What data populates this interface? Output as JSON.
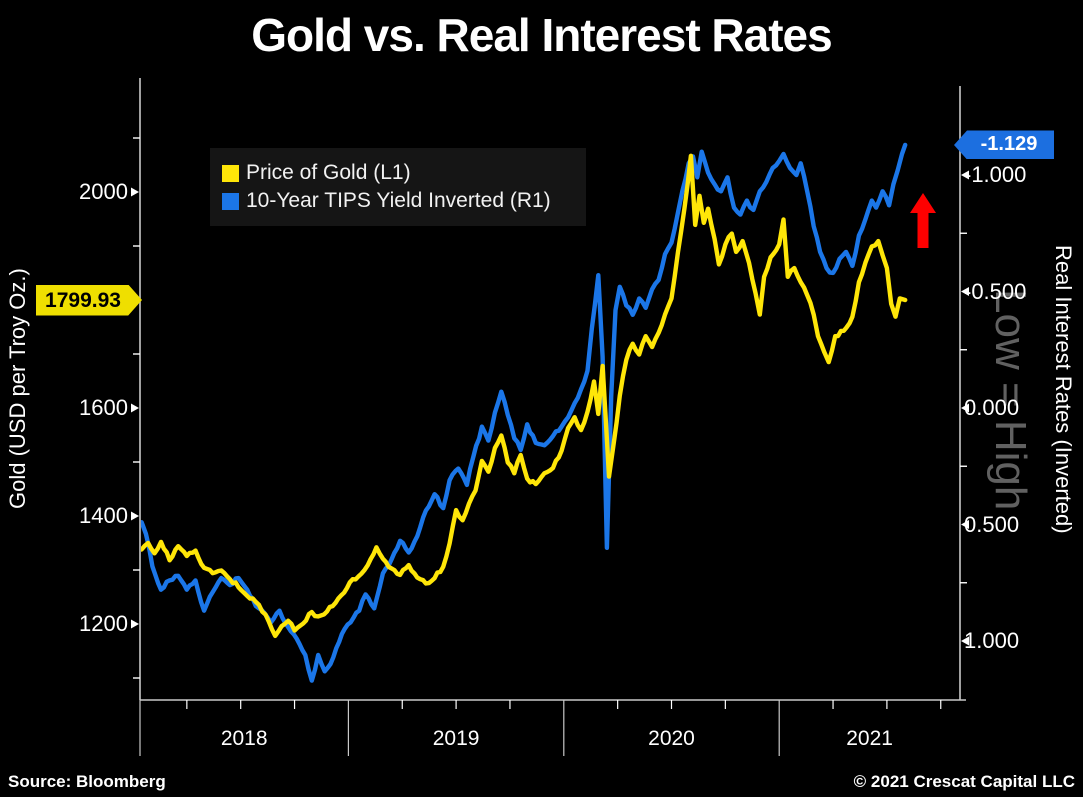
{
  "title": "Gold vs. Real Interest Rates",
  "watermark": "Low = High",
  "footer": {
    "source": "Source: Bloomberg",
    "copyright": "© 2021 Crescat Capital LLC"
  },
  "colors": {
    "gold_line": "#FFE608",
    "gold_badge": "#EFDF00",
    "blue_line": "#1B76E8",
    "blue_badge": "#1C6FE0",
    "arrow_red": "#FE0000",
    "axis": "#C9C9C9",
    "tick": "#FFFFFF",
    "text": "#FFFFFF",
    "watermark": "#616161",
    "legend_bg": "#151515"
  },
  "legend": {
    "items": [
      {
        "label": "Price of Gold (L1)",
        "color_key": "gold_line"
      },
      {
        "label": "10-Year TIPS Yield Inverted (R1)",
        "color_key": "blue_line"
      }
    ]
  },
  "left_axis": {
    "title": "Gold (USD per Troy Oz.)",
    "badge_value": "1799.93",
    "major_ticks": [
      {
        "value": 2000,
        "label": "2000"
      },
      {
        "value": 1800,
        "label": ""
      },
      {
        "value": 1600,
        "label": "1600"
      },
      {
        "value": 1400,
        "label": "1400"
      },
      {
        "value": 1200,
        "label": "1200"
      }
    ],
    "minor_ticks": [
      2100,
      1900,
      1700,
      1500,
      1300,
      1100
    ]
  },
  "right_axis": {
    "title": "Real Interest Rates (Inverted)",
    "badge_value": "-1.129",
    "major_ticks": [
      {
        "value": -1.0,
        "label": "-1.000"
      },
      {
        "value": -0.5,
        "label": "-0.500"
      },
      {
        "value": 0.0,
        "label": "0.000"
      },
      {
        "value": 0.5,
        "label": "0.500"
      },
      {
        "value": 1.0,
        "label": "1.000"
      }
    ],
    "minor_ticks": [
      -0.75,
      -0.25,
      0.25,
      0.75
    ]
  },
  "x_axis": {
    "year_labels": [
      "2018",
      "2019",
      "2020",
      "2021"
    ],
    "year_boundaries": [
      2018.0,
      2019.0,
      2020.0,
      2021.0
    ],
    "quarter_ticks": [
      2018.25,
      2018.5,
      2018.75,
      2019.25,
      2019.5,
      2019.75,
      2020.25,
      2020.5,
      2020.75,
      2021.25,
      2021.5,
      2021.75
    ]
  },
  "annotation_arrow": {
    "meaning": "real rates pushing to new lows (inverted axis rising)",
    "color_key": "arrow_red"
  },
  "chart_data": {
    "type": "line",
    "title": "Gold vs. Real Interest Rates",
    "x_unit": "decimal_year",
    "x_range": [
      2018.03,
      2021.59
    ],
    "grid": false,
    "legend_position": "top-left",
    "left_axis": {
      "label": "Gold (USD per Troy Oz.)",
      "ticks": [
        1200,
        1400,
        1600,
        1800,
        2000
      ]
    },
    "right_axis": {
      "label": "Real Interest Rates (Inverted)",
      "ticks": [
        -1.0,
        -0.5,
        0.0,
        0.5,
        1.0
      ],
      "inverted": true
    },
    "series": [
      {
        "name": "Price of Gold (L1)",
        "axis": "left",
        "units": "USD per Troy Oz.",
        "last_value": 1799.93,
        "points": [
          [
            2018.04,
            1338
          ],
          [
            2018.07,
            1350
          ],
          [
            2018.1,
            1331
          ],
          [
            2018.13,
            1352
          ],
          [
            2018.17,
            1318
          ],
          [
            2018.21,
            1344
          ],
          [
            2018.25,
            1326
          ],
          [
            2018.29,
            1336
          ],
          [
            2018.33,
            1304
          ],
          [
            2018.37,
            1294
          ],
          [
            2018.41,
            1299
          ],
          [
            2018.45,
            1283
          ],
          [
            2018.49,
            1268
          ],
          [
            2018.53,
            1252
          ],
          [
            2018.57,
            1241
          ],
          [
            2018.6,
            1223
          ],
          [
            2018.63,
            1205
          ],
          [
            2018.66,
            1178
          ],
          [
            2018.69,
            1196
          ],
          [
            2018.72,
            1206
          ],
          [
            2018.75,
            1188
          ],
          [
            2018.79,
            1201
          ],
          [
            2018.83,
            1222
          ],
          [
            2018.86,
            1214
          ],
          [
            2018.9,
            1223
          ],
          [
            2018.94,
            1239
          ],
          [
            2018.98,
            1258
          ],
          [
            2019.02,
            1283
          ],
          [
            2019.06,
            1293
          ],
          [
            2019.09,
            1309
          ],
          [
            2019.13,
            1342
          ],
          [
            2019.16,
            1321
          ],
          [
            2019.2,
            1303
          ],
          [
            2019.24,
            1291
          ],
          [
            2019.28,
            1309
          ],
          [
            2019.32,
            1286
          ],
          [
            2019.36,
            1275
          ],
          [
            2019.4,
            1285
          ],
          [
            2019.44,
            1306
          ],
          [
            2019.47,
            1349
          ],
          [
            2019.5,
            1411
          ],
          [
            2019.53,
            1392
          ],
          [
            2019.56,
            1423
          ],
          [
            2019.59,
            1447
          ],
          [
            2019.62,
            1502
          ],
          [
            2019.65,
            1482
          ],
          [
            2019.68,
            1526
          ],
          [
            2019.71,
            1549
          ],
          [
            2019.74,
            1499
          ],
          [
            2019.77,
            1479
          ],
          [
            2019.8,
            1513
          ],
          [
            2019.83,
            1469
          ],
          [
            2019.87,
            1459
          ],
          [
            2019.91,
            1479
          ],
          [
            2019.95,
            1489
          ],
          [
            2019.99,
            1521
          ],
          [
            2020.02,
            1563
          ],
          [
            2020.05,
            1583
          ],
          [
            2020.08,
            1559
          ],
          [
            2020.11,
            1593
          ],
          [
            2020.14,
            1649
          ],
          [
            2020.16,
            1589
          ],
          [
            2020.18,
            1678
          ],
          [
            2020.21,
            1473
          ],
          [
            2020.23,
            1529
          ],
          [
            2020.26,
            1623
          ],
          [
            2020.29,
            1689
          ],
          [
            2020.32,
            1719
          ],
          [
            2020.35,
            1699
          ],
          [
            2020.38,
            1733
          ],
          [
            2020.41,
            1713
          ],
          [
            2020.44,
            1739
          ],
          [
            2020.47,
            1773
          ],
          [
            2020.5,
            1803
          ],
          [
            2020.53,
            1889
          ],
          [
            2020.56,
            1969
          ],
          [
            2020.59,
            2067
          ],
          [
            2020.61,
            1939
          ],
          [
            2020.63,
            1993
          ],
          [
            2020.65,
            1943
          ],
          [
            2020.67,
            1969
          ],
          [
            2020.7,
            1913
          ],
          [
            2020.72,
            1866
          ],
          [
            2020.75,
            1903
          ],
          [
            2020.78,
            1923
          ],
          [
            2020.8,
            1889
          ],
          [
            2020.83,
            1909
          ],
          [
            2020.86,
            1869
          ],
          [
            2020.89,
            1813
          ],
          [
            2020.91,
            1773
          ],
          [
            2020.93,
            1843
          ],
          [
            2020.96,
            1879
          ],
          [
            2021.0,
            1903
          ],
          [
            2021.02,
            1949
          ],
          [
            2021.04,
            1843
          ],
          [
            2021.07,
            1859
          ],
          [
            2021.1,
            1833
          ],
          [
            2021.13,
            1809
          ],
          [
            2021.16,
            1773
          ],
          [
            2021.18,
            1733
          ],
          [
            2021.21,
            1703
          ],
          [
            2021.23,
            1685
          ],
          [
            2021.26,
            1733
          ],
          [
            2021.3,
            1743
          ],
          [
            2021.34,
            1769
          ],
          [
            2021.37,
            1833
          ],
          [
            2021.4,
            1869
          ],
          [
            2021.43,
            1899
          ],
          [
            2021.46,
            1909
          ],
          [
            2021.48,
            1883
          ],
          [
            2021.5,
            1859
          ],
          [
            2021.52,
            1793
          ],
          [
            2021.54,
            1769
          ],
          [
            2021.56,
            1803
          ],
          [
            2021.585,
            1799.93
          ]
        ]
      },
      {
        "name": "10-Year TIPS Yield Inverted (R1)",
        "axis": "right",
        "units": "percent",
        "axis_inverted": true,
        "last_value": -1.129,
        "points": [
          [
            2018.04,
            0.49
          ],
          [
            2018.06,
            0.54
          ],
          [
            2018.09,
            0.68
          ],
          [
            2018.13,
            0.78
          ],
          [
            2018.17,
            0.74
          ],
          [
            2018.21,
            0.72
          ],
          [
            2018.25,
            0.78
          ],
          [
            2018.29,
            0.74
          ],
          [
            2018.33,
            0.87
          ],
          [
            2018.37,
            0.79
          ],
          [
            2018.41,
            0.73
          ],
          [
            2018.45,
            0.76
          ],
          [
            2018.49,
            0.73
          ],
          [
            2018.53,
            0.78
          ],
          [
            2018.57,
            0.85
          ],
          [
            2018.61,
            0.88
          ],
          [
            2018.64,
            0.92
          ],
          [
            2018.68,
            0.87
          ],
          [
            2018.72,
            0.94
          ],
          [
            2018.76,
            0.99
          ],
          [
            2018.8,
            1.06
          ],
          [
            2018.83,
            1.17
          ],
          [
            2018.86,
            1.06
          ],
          [
            2018.89,
            1.13
          ],
          [
            2018.93,
            1.07
          ],
          [
            2018.97,
            0.97
          ],
          [
            2019.01,
            0.92
          ],
          [
            2019.05,
            0.87
          ],
          [
            2019.08,
            0.8
          ],
          [
            2019.12,
            0.86
          ],
          [
            2019.16,
            0.71
          ],
          [
            2019.2,
            0.65
          ],
          [
            2019.24,
            0.57
          ],
          [
            2019.28,
            0.62
          ],
          [
            2019.32,
            0.55
          ],
          [
            2019.36,
            0.44
          ],
          [
            2019.4,
            0.37
          ],
          [
            2019.44,
            0.43
          ],
          [
            2019.47,
            0.31
          ],
          [
            2019.51,
            0.26
          ],
          [
            2019.55,
            0.33
          ],
          [
            2019.58,
            0.21
          ],
          [
            2019.62,
            0.08
          ],
          [
            2019.65,
            0.14
          ],
          [
            2019.68,
            0.02
          ],
          [
            2019.71,
            -0.07
          ],
          [
            2019.74,
            0.03
          ],
          [
            2019.77,
            0.13
          ],
          [
            2019.8,
            0.18
          ],
          [
            2019.83,
            0.07
          ],
          [
            2019.87,
            0.15
          ],
          [
            2019.91,
            0.16
          ],
          [
            2019.95,
            0.12
          ],
          [
            2019.99,
            0.08
          ],
          [
            2020.02,
            0.04
          ],
          [
            2020.05,
            -0.02
          ],
          [
            2020.08,
            -0.08
          ],
          [
            2020.11,
            -0.16
          ],
          [
            2020.13,
            -0.34
          ],
          [
            2020.16,
            -0.57
          ],
          [
            2020.18,
            -0.22
          ],
          [
            2020.2,
            0.6
          ],
          [
            2020.22,
            -0.05
          ],
          [
            2020.24,
            -0.42
          ],
          [
            2020.26,
            -0.52
          ],
          [
            2020.29,
            -0.44
          ],
          [
            2020.32,
            -0.4
          ],
          [
            2020.35,
            -0.47
          ],
          [
            2020.38,
            -0.43
          ],
          [
            2020.41,
            -0.51
          ],
          [
            2020.44,
            -0.55
          ],
          [
            2020.47,
            -0.66
          ],
          [
            2020.5,
            -0.71
          ],
          [
            2020.53,
            -0.84
          ],
          [
            2020.55,
            -0.93
          ],
          [
            2020.58,
            -1.05
          ],
          [
            2020.6,
            -1.08
          ],
          [
            2020.62,
            -0.99
          ],
          [
            2020.64,
            -1.1
          ],
          [
            2020.67,
            -1.01
          ],
          [
            2020.7,
            -0.96
          ],
          [
            2020.73,
            -0.93
          ],
          [
            2020.76,
            -0.99
          ],
          [
            2020.79,
            -0.86
          ],
          [
            2020.82,
            -0.83
          ],
          [
            2020.85,
            -0.89
          ],
          [
            2020.88,
            -0.85
          ],
          [
            2020.91,
            -0.93
          ],
          [
            2020.94,
            -0.97
          ],
          [
            2020.97,
            -1.03
          ],
          [
            2021.0,
            -1.06
          ],
          [
            2021.02,
            -1.09
          ],
          [
            2021.05,
            -1.03
          ],
          [
            2021.08,
            -1.0
          ],
          [
            2021.1,
            -1.05
          ],
          [
            2021.13,
            -0.93
          ],
          [
            2021.16,
            -0.78
          ],
          [
            2021.19,
            -0.67
          ],
          [
            2021.22,
            -0.6
          ],
          [
            2021.25,
            -0.58
          ],
          [
            2021.28,
            -0.64
          ],
          [
            2021.31,
            -0.67
          ],
          [
            2021.34,
            -0.61
          ],
          [
            2021.37,
            -0.74
          ],
          [
            2021.4,
            -0.81
          ],
          [
            2021.43,
            -0.89
          ],
          [
            2021.45,
            -0.86
          ],
          [
            2021.48,
            -0.93
          ],
          [
            2021.51,
            -0.87
          ],
          [
            2021.53,
            -0.96
          ],
          [
            2021.55,
            -1.02
          ],
          [
            2021.57,
            -1.09
          ],
          [
            2021.585,
            -1.129
          ]
        ]
      }
    ]
  }
}
